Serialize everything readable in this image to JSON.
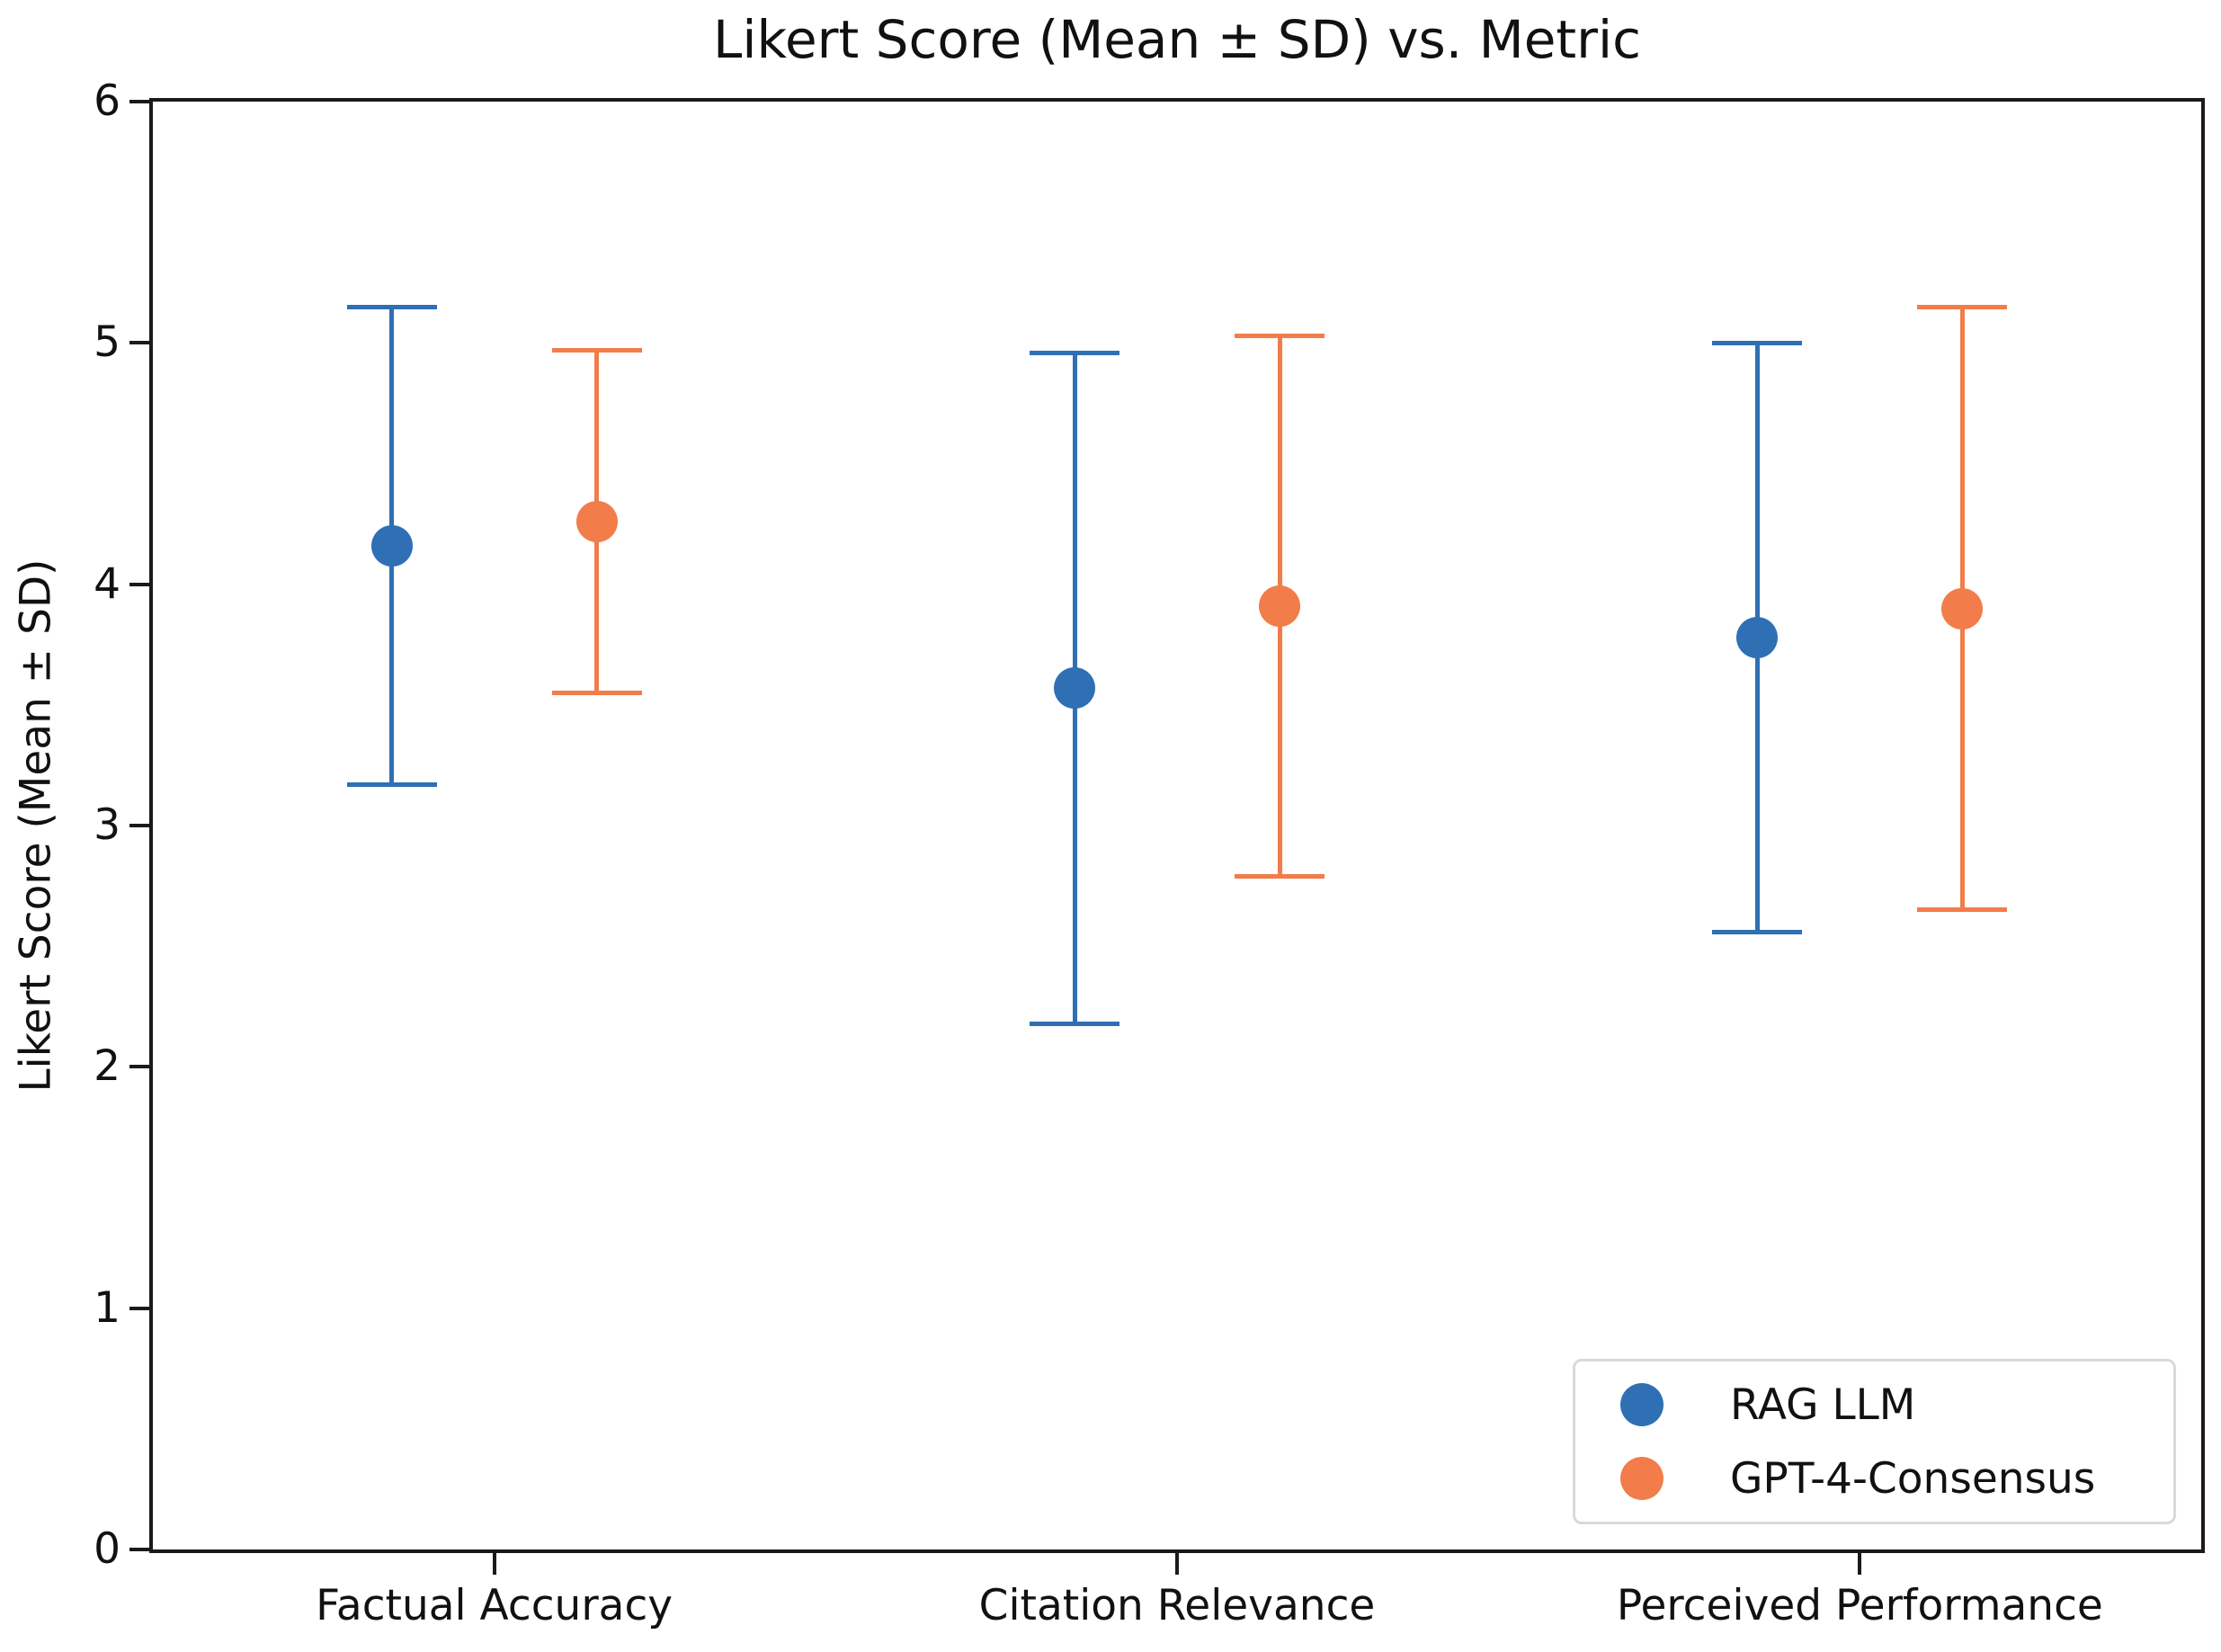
{
  "chart_data": {
    "type": "scatter",
    "subtype": "errorbar-dotplot",
    "title": "Likert Score (Mean ± SD) vs. Metric",
    "xlabel": "",
    "ylabel": "Likert Score (Mean ± SD)",
    "categories": [
      "Factual Accuracy",
      "Citation Relevance",
      "Perceived Performance"
    ],
    "ylim": [
      0,
      6
    ],
    "yticks": [
      0,
      1,
      2,
      3,
      4,
      5,
      6
    ],
    "grid": false,
    "background_color": "#ffffff",
    "axis_color": "#1a1a1a",
    "legend": {
      "position": "lower right",
      "entries": [
        "RAG LLM",
        "GPT-4-Consensus"
      ]
    },
    "series": [
      {
        "name": "RAG LLM",
        "color": "#2f6fb4",
        "means": [
          4.16,
          3.57,
          3.78
        ],
        "sds": [
          0.99,
          1.39,
          1.22
        ]
      },
      {
        "name": "GPT-4-Consensus",
        "color": "#f27c4a",
        "means": [
          4.26,
          3.91,
          3.9
        ],
        "sds": [
          0.71,
          1.12,
          1.25
        ]
      }
    ]
  }
}
